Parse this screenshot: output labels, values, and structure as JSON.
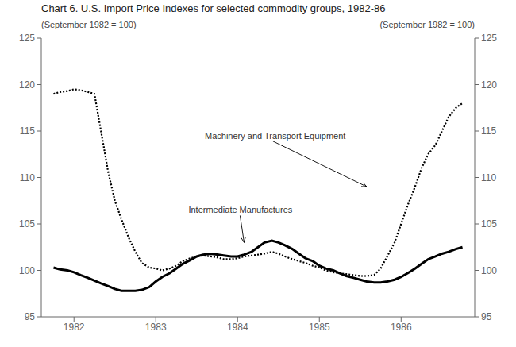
{
  "chart_data": {
    "type": "line",
    "title": "Chart 6.  U.S. Import Price Indexes for selected commodity groups, 1982-86",
    "subtitles": [
      "(September 1982 = 100)",
      "(September 1982 = 100)"
    ],
    "xlim": [
      1981.6,
      1986.9
    ],
    "xticks": [
      1982,
      1983,
      1984,
      1985,
      1986
    ],
    "ylim": [
      95,
      125
    ],
    "yticks": [
      95,
      100,
      105,
      110,
      115,
      120,
      125
    ],
    "y2lim": [
      95,
      125
    ],
    "y2ticks": [
      95,
      100,
      105,
      110,
      115,
      120,
      125
    ],
    "grid": false,
    "series": [
      {
        "color": "#000000",
        "line_style": "dotted",
        "x": [
          1981.75,
          1981.83,
          1981.92,
          1982.0,
          1982.08,
          1982.17,
          1982.25,
          1982.33,
          1982.42,
          1982.5,
          1982.58,
          1982.67,
          1982.75,
          1982.83,
          1982.92,
          1983.0,
          1983.08,
          1983.17,
          1983.25,
          1983.33,
          1983.42,
          1983.5,
          1983.58,
          1983.67,
          1983.75,
          1983.83,
          1983.92,
          1984.0,
          1984.08,
          1984.17,
          1984.25,
          1984.33,
          1984.42,
          1984.5,
          1984.58,
          1984.67,
          1984.75,
          1984.83,
          1984.92,
          1985.0,
          1985.08,
          1985.17,
          1985.25,
          1985.33,
          1985.42,
          1985.5,
          1985.58,
          1985.67,
          1985.75,
          1985.83,
          1985.92,
          1986.0,
          1986.08,
          1986.17,
          1986.25,
          1986.33,
          1986.42,
          1986.5,
          1986.58,
          1986.67,
          1986.75
        ],
        "values": [
          119.0,
          119.2,
          119.3,
          119.5,
          119.4,
          119.2,
          119.0,
          115.0,
          110.5,
          107.5,
          105.5,
          103.5,
          102.0,
          100.8,
          100.3,
          100.2,
          100.0,
          100.2,
          100.5,
          101.0,
          101.3,
          101.5,
          101.6,
          101.5,
          101.4,
          101.2,
          101.2,
          101.3,
          101.5,
          101.6,
          101.7,
          101.8,
          102.0,
          101.8,
          101.5,
          101.2,
          101.0,
          100.8,
          100.5,
          100.3,
          100.0,
          99.8,
          99.7,
          99.6,
          99.5,
          99.4,
          99.4,
          99.5,
          100.2,
          101.5,
          103.0,
          105.0,
          107.0,
          109.0,
          111.0,
          112.5,
          113.5,
          115.0,
          116.5,
          117.5,
          118.0
        ]
      },
      {
        "color": "#000000",
        "line_style": "solid",
        "x": [
          1981.75,
          1981.83,
          1981.92,
          1982.0,
          1982.08,
          1982.17,
          1982.25,
          1982.33,
          1982.42,
          1982.5,
          1982.58,
          1982.67,
          1982.75,
          1982.83,
          1982.92,
          1983.0,
          1983.08,
          1983.17,
          1983.25,
          1983.33,
          1983.42,
          1983.5,
          1983.58,
          1983.67,
          1983.75,
          1983.83,
          1983.92,
          1984.0,
          1984.08,
          1984.17,
          1984.25,
          1984.33,
          1984.42,
          1984.5,
          1984.58,
          1984.67,
          1984.75,
          1984.83,
          1984.92,
          1985.0,
          1985.08,
          1985.17,
          1985.25,
          1985.33,
          1985.42,
          1985.5,
          1985.58,
          1985.67,
          1985.75,
          1985.83,
          1985.92,
          1986.0,
          1986.08,
          1986.17,
          1986.25,
          1986.33,
          1986.42,
          1986.5,
          1986.58,
          1986.67,
          1986.75
        ],
        "values": [
          100.3,
          100.1,
          100.0,
          99.8,
          99.5,
          99.2,
          98.9,
          98.6,
          98.3,
          98.0,
          97.8,
          97.8,
          97.8,
          97.9,
          98.2,
          98.8,
          99.3,
          99.7,
          100.2,
          100.7,
          101.1,
          101.5,
          101.7,
          101.8,
          101.7,
          101.6,
          101.5,
          101.5,
          101.7,
          102.0,
          102.5,
          103.0,
          103.2,
          103.0,
          102.7,
          102.3,
          101.8,
          101.3,
          101.0,
          100.5,
          100.2,
          100.0,
          99.7,
          99.4,
          99.2,
          99.0,
          98.8,
          98.7,
          98.7,
          98.8,
          99.0,
          99.3,
          99.7,
          100.2,
          100.7,
          101.2,
          101.5,
          101.8,
          102.0,
          102.3,
          102.5
        ]
      }
    ],
    "annotations": [
      {
        "text": "Machinery and Transport Equipment",
        "x": 1983.6,
        "y": 114.5,
        "arrow_x": 1985.58,
        "arrow_y": 109.0
      },
      {
        "text": "Intermediate Manufactures",
        "x": 1983.4,
        "y": 106.5,
        "arrow_x": 1984.08,
        "arrow_y": 103.0
      }
    ]
  }
}
